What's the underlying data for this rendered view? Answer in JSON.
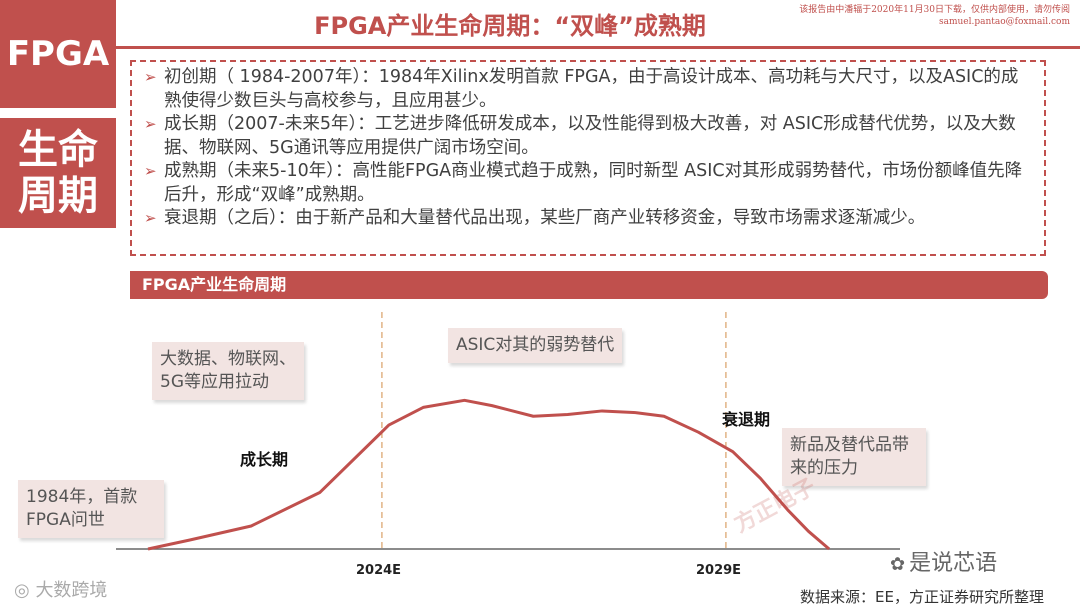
{
  "sidebar": {
    "top_label": "FPGA",
    "bottom_label_1": "生命",
    "bottom_label_2": "周期"
  },
  "header": {
    "title": "FPGA产业生命周期：“双峰”成熟期",
    "watermark_line1": "该报告由中潘辐于2020年11月30日下载，仅供内部使用，请勿传阅",
    "watermark_line2": "samuel.pantao@foxmail.com"
  },
  "bullets": [
    "初创期（ 1984-2007年）：1984年Xilinx发明首款 FPGA，由于高设计成本、高功耗与大尺寸，以及ASIC的成熟使得少数巨头与高校参与，且应用甚少。",
    "成长期（2007-未来5年）：工艺进步降低研发成本，以及性能得到极大改善，对 ASIC形成替代优势，以及大数据、物联网、5G通讯等应用提供广阔市场空间。",
    "成熟期（未来5-10年）：高性能FPGA商业模式趋于成熟，同时新型 ASIC对其形成弱势替代，市场份额峰值先降后升，形成“双峰”成熟期。",
    "衰退期（之后）：由于新产品和大量替代品出现，某些厂商产业转移资金，导致市场需求逐渐减少。"
  ],
  "chart_header": "FPGA产业生命周期",
  "chart_data": {
    "type": "line",
    "title": "FPGA产业生命周期",
    "x_range": [
      0,
      100
    ],
    "y_range": [
      0,
      100
    ],
    "x_ticks": [
      {
        "x": 34,
        "label": "2024E"
      },
      {
        "x": 84,
        "label": "2029E"
      }
    ],
    "vlines": [
      34,
      84
    ],
    "series": [
      {
        "color": "#c0504d",
        "x": [
          0,
          6,
          15,
          25,
          35,
          40,
          46,
          50,
          56,
          61,
          66,
          71,
          75,
          80,
          85,
          89,
          93,
          96,
          99
        ],
        "y": [
          0,
          5,
          13,
          32,
          70,
          80,
          84,
          81,
          75,
          76,
          78,
          77,
          75,
          66,
          55,
          40,
          22,
          10,
          0
        ]
      }
    ],
    "annotations": {
      "start": "1984年，首款FPGA问世",
      "growth_driver": "大数据、物联网、5G等应用拉动",
      "asic": "ASIC对其的弱势替代",
      "new_products": "新品及替代品带来的压力"
    },
    "phase_labels": {
      "growth": "成长期",
      "decline": "衰退期"
    }
  },
  "source": "数据来源：EE，方正证券研究所整理",
  "watermarks": {
    "center": "方正电子",
    "wechat": "是说芯语",
    "bottom": "大数跨境"
  },
  "colors": {
    "accent": "#c0504d",
    "note_bg": "#f2e4e2"
  }
}
